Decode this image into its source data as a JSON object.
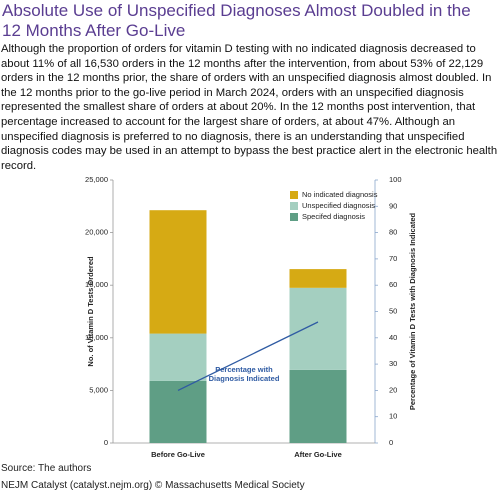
{
  "chart_data": {
    "type": "bar",
    "stacked": true,
    "title": "Absolute Use of Unspecified Diagnoses Almost Doubled in the 12 Months After Go-Live",
    "subtitle": "Although the proportion of orders for vitamin D testing with no indicated diagnosis decreased to about 11% of all 16,530 orders in the 12 months after the intervention, from about 53% of 22,129 orders in the 12 months prior, the share of orders with an unspecified diagnosis almost doubled. In the 12 months prior to the go-live period in March 2024, orders with an unspecified diagnosis represented the smallest share of orders at about 20%. In the 12 months post intervention, that percentage increased to account for the largest share of orders, at about 47%. Although an unspecified diagnosis is preferred to no diagnosis, there is an understanding that unspecified diagnosis codes may be used in an attempt to bypass the best practice alert in the electronic health record.",
    "source": "Source: The authors",
    "credit": "NEJM Catalyst (catalyst.nejm.org) © Massachusetts Medical Society",
    "categories": [
      "Before Go-Live",
      "After Go-Live"
    ],
    "series": [
      {
        "name": "Specifed diagnosis",
        "color": "#5f9e85",
        "values": [
          5900,
          6950
        ]
      },
      {
        "name": "Unspecified diagnosis",
        "color": "#a4cfc0",
        "values": [
          4500,
          7800
        ]
      },
      {
        "name": "No indicated diagnosis",
        "color": "#d6aa14",
        "values": [
          11729,
          1780
        ]
      },
      {
        "name": "Percentage with Diagnosis Indicated",
        "type": "line",
        "axis": "y2",
        "color": "#2f5ba3",
        "values": [
          20,
          46
        ]
      }
    ],
    "ylabel": "No. of Vitamin D Tests Ordered",
    "y2label": "Percentage of Vitamin D Tests with Diagnosis Indicated",
    "ylim": [
      0,
      25000
    ],
    "yticks": [
      0,
      {
        "value": 5000,
        "label": "5,000"
      },
      {
        "value": 10000,
        "label": "10,000"
      },
      {
        "value": 15000,
        "label": "15,000"
      },
      {
        "value": 20000,
        "label": "20,000"
      },
      {
        "value": 25000,
        "label": "25,000"
      }
    ],
    "y2lim": [
      0,
      100
    ],
    "y2ticks": [
      0,
      10,
      20,
      30,
      40,
      50,
      60,
      70,
      80,
      90,
      100
    ],
    "legend": "upper right",
    "grid": false
  }
}
